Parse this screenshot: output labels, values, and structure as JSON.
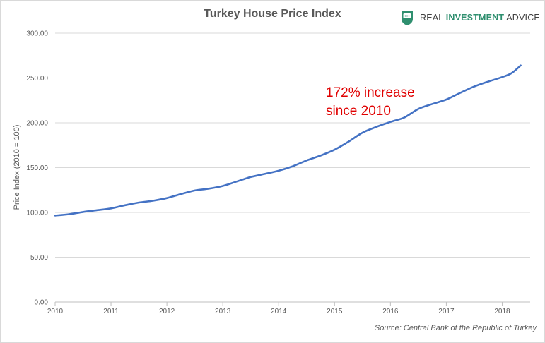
{
  "chart_data": {
    "type": "line",
    "title": "Turkey House Price Index",
    "ylabel": "Price Index (2010 = 100)",
    "xlabel": "",
    "xlim": [
      2010.0,
      2018.5
    ],
    "ylim": [
      0,
      300
    ],
    "y_ticks": [
      "0.00",
      "50.00",
      "100.00",
      "150.00",
      "200.00",
      "250.00",
      "300.00"
    ],
    "x_ticks": [
      "2010",
      "2011",
      "2012",
      "2013",
      "2014",
      "2015",
      "2016",
      "2017",
      "2018"
    ],
    "grid": "horizontal",
    "legend": "none",
    "series_color": "#4472c4",
    "series": [
      {
        "x": [
          2010.0,
          2010.25,
          2010.5,
          2010.75,
          2011.0,
          2011.25,
          2011.5,
          2011.75,
          2012.0,
          2012.25,
          2012.5,
          2012.75,
          2013.0,
          2013.25,
          2013.5,
          2013.75,
          2014.0,
          2014.25,
          2014.5,
          2014.75,
          2015.0,
          2015.25,
          2015.5,
          2015.75,
          2016.0,
          2016.25,
          2016.5,
          2016.75,
          2017.0,
          2017.25,
          2017.5,
          2017.75,
          2018.0,
          2018.17,
          2018.33
        ],
        "values": [
          96.5,
          98.0,
          100.5,
          102.5,
          104.5,
          108.0,
          111.0,
          113.0,
          116.0,
          120.5,
          124.5,
          126.5,
          129.5,
          134.5,
          139.5,
          143.0,
          146.5,
          151.5,
          158.0,
          163.5,
          170.0,
          179.0,
          189.0,
          195.5,
          201.0,
          206.0,
          215.5,
          221.0,
          226.0,
          233.5,
          240.5,
          246.0,
          251.0,
          255.5,
          264.0
        ]
      }
    ],
    "annotation": [
      "172% increase",
      "since 2010"
    ],
    "source": "Source: Central Bank of the Republic of Turkey"
  },
  "logo": {
    "icon": "chat-shield-icon",
    "words": [
      "REAL",
      "INVESTMENT",
      "ADVICE"
    ],
    "color": "#2f8f6f"
  }
}
